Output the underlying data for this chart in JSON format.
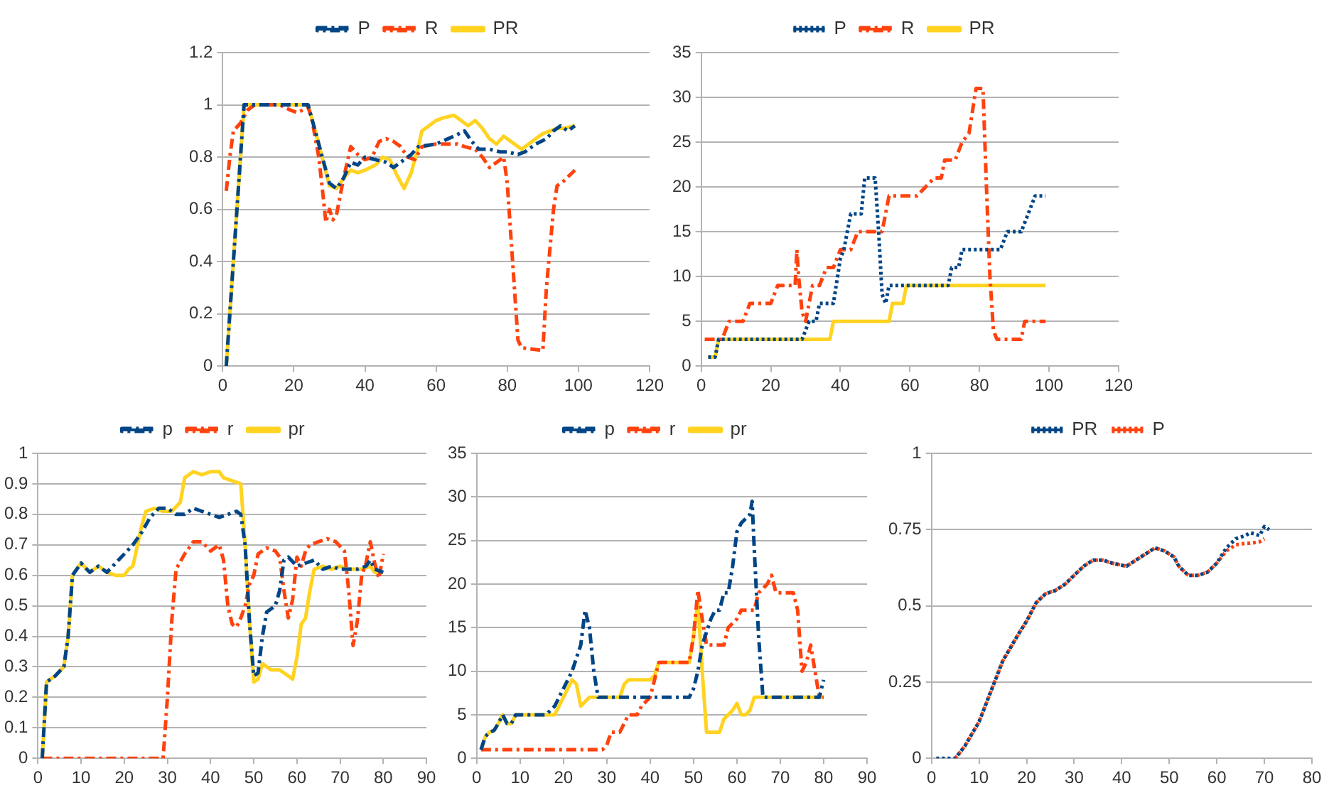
{
  "chart_data": [
    {
      "type": "line",
      "legend": "top",
      "grid": "y",
      "marker": "none",
      "xlim": [
        0,
        120
      ],
      "xticks": [
        0,
        20,
        40,
        60,
        80,
        100,
        120
      ],
      "ylim": [
        0,
        1.2
      ],
      "yticks": [
        0,
        0.2,
        0.4,
        0.6,
        0.8,
        1,
        1.2
      ],
      "series": [
        {
          "name": "P",
          "color": "#004586",
          "line_style": "dashed",
          "x": [
            1,
            6,
            24,
            27,
            30,
            32,
            34,
            36,
            38,
            40,
            43,
            46,
            48,
            51,
            53,
            55,
            60,
            65,
            68,
            70,
            72,
            75,
            78,
            80,
            83,
            85,
            88,
            91,
            93,
            95,
            97,
            99
          ],
          "values": [
            0,
            1,
            1,
            0.85,
            0.7,
            0.68,
            0.72,
            0.78,
            0.77,
            0.8,
            0.79,
            0.78,
            0.76,
            0.79,
            0.81,
            0.84,
            0.85,
            0.88,
            0.9,
            0.86,
            0.83,
            0.83,
            0.82,
            0.82,
            0.81,
            0.82,
            0.85,
            0.87,
            0.9,
            0.92,
            0.9,
            0.92
          ]
        },
        {
          "name": "R",
          "color": "#ff420e",
          "line_style": "dashed",
          "x": [
            1,
            2,
            3,
            5,
            7,
            9,
            16,
            19,
            21,
            24,
            25,
            27,
            28,
            29,
            30,
            31,
            32,
            34,
            36,
            38,
            40,
            42,
            44,
            46,
            48,
            50,
            52,
            54,
            56,
            60,
            63,
            66,
            68,
            71,
            73,
            75,
            77,
            79,
            80,
            81,
            82,
            83,
            84,
            90,
            91,
            93,
            94,
            96,
            99
          ],
          "values": [
            0.67,
            0.8,
            0.9,
            0.93,
            0.98,
            1,
            1,
            0.98,
            0.97,
            0.99,
            0.95,
            0.8,
            0.68,
            0.55,
            0.6,
            0.56,
            0.58,
            0.72,
            0.84,
            0.81,
            0.79,
            0.8,
            0.86,
            0.87,
            0.86,
            0.84,
            0.8,
            0.79,
            0.84,
            0.85,
            0.85,
            0.85,
            0.84,
            0.83,
            0.8,
            0.76,
            0.78,
            0.8,
            0.7,
            0.5,
            0.3,
            0.1,
            0.07,
            0.06,
            0.3,
            0.6,
            0.69,
            0.71,
            0.75
          ]
        },
        {
          "name": "PR",
          "color": "#ffd320",
          "line_style": "solid",
          "x": [
            1,
            6,
            24,
            27,
            30,
            32,
            34,
            36,
            38,
            40,
            43,
            45,
            47,
            49,
            51,
            53,
            55,
            56,
            58,
            60,
            62,
            65,
            67,
            69,
            71,
            73,
            75,
            77,
            79,
            81,
            84,
            86,
            88,
            90,
            92,
            94,
            96,
            99
          ],
          "values": [
            0,
            1,
            1,
            0.85,
            0.69,
            0.68,
            0.72,
            0.75,
            0.74,
            0.75,
            0.77,
            0.8,
            0.79,
            0.73,
            0.68,
            0.74,
            0.84,
            0.9,
            0.92,
            0.94,
            0.95,
            0.96,
            0.94,
            0.92,
            0.94,
            0.91,
            0.87,
            0.85,
            0.88,
            0.86,
            0.83,
            0.85,
            0.87,
            0.89,
            0.9,
            0.91,
            0.91,
            0.92
          ]
        }
      ]
    },
    {
      "type": "line",
      "legend": "top",
      "grid": "y",
      "marker": "none",
      "xlim": [
        0,
        120
      ],
      "xticks": [
        0,
        20,
        40,
        60,
        80,
        100,
        120
      ],
      "ylim": [
        0,
        35
      ],
      "yticks": [
        0,
        5,
        10,
        15,
        20,
        25,
        30,
        35
      ],
      "series": [
        {
          "name": "P",
          "color": "#004586",
          "line_style": "dotted",
          "x": [
            2,
            4,
            5,
            29,
            31,
            33,
            34,
            38,
            40,
            41,
            43,
            46,
            47,
            50,
            51,
            52,
            53,
            54,
            59,
            71,
            72,
            74,
            75,
            86,
            88,
            92,
            95,
            96,
            99
          ],
          "values": [
            1,
            1,
            3,
            3,
            5,
            5,
            7,
            7,
            12,
            13,
            17,
            17,
            21,
            21,
            15,
            8,
            7,
            9,
            9,
            9,
            11,
            11,
            13,
            13,
            15,
            15,
            18,
            19,
            19
          ]
        },
        {
          "name": "R",
          "color": "#ff420e",
          "line_style": "dashed",
          "x": [
            1,
            6,
            7,
            8,
            12,
            13,
            14,
            20,
            22,
            27,
            27.5,
            28,
            29,
            30,
            31,
            32,
            34,
            36,
            38,
            40,
            43,
            45,
            52,
            54,
            62,
            67,
            69,
            70,
            73,
            75,
            77,
            79,
            81,
            82,
            83,
            84,
            85,
            92,
            93,
            99
          ],
          "values": [
            3,
            3,
            4,
            5,
            5,
            6,
            7,
            7,
            9,
            9,
            13,
            10,
            6,
            5,
            7,
            9,
            9,
            11,
            11,
            13,
            13,
            15,
            15,
            19,
            19,
            21,
            21,
            23,
            23,
            25,
            26,
            31,
            31,
            20,
            10,
            4,
            3,
            3,
            5,
            5
          ]
        },
        {
          "name": "PR",
          "color": "#ffd320",
          "line_style": "solid",
          "x": [
            2,
            4,
            5,
            37,
            38,
            54,
            55,
            58,
            59,
            99
          ],
          "values": [
            1,
            1,
            3,
            3,
            5,
            5,
            7,
            7,
            9,
            9
          ]
        }
      ]
    },
    {
      "type": "line",
      "legend": "top",
      "grid": "y",
      "marker": "none",
      "xlim": [
        0,
        90
      ],
      "xticks": [
        0,
        10,
        20,
        30,
        40,
        50,
        60,
        70,
        80,
        90
      ],
      "ylim": [
        0,
        1
      ],
      "yticks": [
        0,
        0.1,
        0.2,
        0.3,
        0.4,
        0.5,
        0.6,
        0.7,
        0.8,
        0.9,
        1
      ],
      "series": [
        {
          "name": "p",
          "color": "#004586",
          "line_style": "dashed",
          "x": [
            1,
            2,
            4,
            6,
            7,
            8,
            10,
            12,
            14,
            16,
            18,
            20,
            22,
            24,
            26,
            28,
            30,
            32,
            34,
            36,
            38,
            40,
            42,
            44,
            46,
            47,
            48,
            49,
            50,
            51,
            52,
            53,
            55,
            56,
            57,
            58,
            60,
            62,
            64,
            66,
            68,
            70,
            72,
            74,
            76,
            77,
            78,
            80
          ],
          "values": [
            0,
            0.25,
            0.27,
            0.3,
            0.4,
            0.6,
            0.64,
            0.61,
            0.63,
            0.61,
            0.64,
            0.67,
            0.7,
            0.74,
            0.79,
            0.82,
            0.82,
            0.8,
            0.8,
            0.82,
            0.81,
            0.8,
            0.79,
            0.8,
            0.81,
            0.8,
            0.7,
            0.45,
            0.27,
            0.28,
            0.4,
            0.48,
            0.5,
            0.55,
            0.65,
            0.66,
            0.63,
            0.64,
            0.65,
            0.62,
            0.63,
            0.62,
            0.62,
            0.62,
            0.63,
            0.65,
            0.62,
            0.61
          ]
        },
        {
          "name": "r",
          "color": "#ff420e",
          "line_style": "dashed",
          "x": [
            1,
            29,
            30,
            31,
            32,
            34,
            36,
            38,
            40,
            42,
            43,
            44,
            45,
            46,
            47,
            48,
            49,
            50,
            51,
            53,
            55,
            56,
            57,
            58,
            59,
            60,
            61,
            62,
            63,
            65,
            67,
            69,
            71,
            72,
            73,
            74,
            75,
            76,
            77,
            78,
            79,
            80
          ],
          "values": [
            0,
            0,
            0.2,
            0.45,
            0.62,
            0.67,
            0.71,
            0.71,
            0.68,
            0.7,
            0.65,
            0.5,
            0.44,
            0.43,
            0.46,
            0.5,
            0.57,
            0.6,
            0.67,
            0.69,
            0.68,
            0.66,
            0.55,
            0.46,
            0.52,
            0.66,
            0.63,
            0.68,
            0.7,
            0.71,
            0.72,
            0.71,
            0.68,
            0.55,
            0.37,
            0.45,
            0.6,
            0.64,
            0.71,
            0.64,
            0.59,
            0.67
          ]
        },
        {
          "name": "pr",
          "color": "#ffd320",
          "line_style": "solid",
          "x": [
            1,
            2,
            4,
            6,
            7,
            8,
            10,
            12,
            14,
            16,
            18,
            20,
            21,
            22,
            24,
            25,
            27,
            29,
            31,
            33,
            34,
            36,
            38,
            40,
            42,
            43,
            45,
            47,
            48,
            49,
            50,
            51,
            52,
            54,
            56,
            58,
            59,
            60,
            61,
            62,
            63,
            64,
            66,
            68,
            70,
            72,
            75,
            77,
            78,
            80
          ],
          "values": [
            0,
            0.25,
            0.27,
            0.3,
            0.4,
            0.6,
            0.64,
            0.61,
            0.63,
            0.61,
            0.6,
            0.6,
            0.62,
            0.63,
            0.76,
            0.81,
            0.82,
            0.81,
            0.81,
            0.84,
            0.92,
            0.94,
            0.93,
            0.94,
            0.94,
            0.92,
            0.91,
            0.9,
            0.7,
            0.45,
            0.25,
            0.26,
            0.31,
            0.29,
            0.29,
            0.27,
            0.26,
            0.33,
            0.44,
            0.46,
            0.55,
            0.62,
            0.63,
            0.62,
            0.63,
            0.62,
            0.62,
            0.63,
            0.61,
            0.61
          ]
        }
      ]
    },
    {
      "type": "line",
      "legend": "top",
      "grid": "y",
      "marker": "none",
      "xlim": [
        0,
        90
      ],
      "xticks": [
        0,
        10,
        20,
        30,
        40,
        50,
        60,
        70,
        80,
        90
      ],
      "ylim": [
        0,
        35
      ],
      "yticks": [
        0,
        5,
        10,
        15,
        20,
        25,
        30,
        35
      ],
      "series": [
        {
          "name": "p",
          "color": "#004586",
          "line_style": "dashed",
          "x": [
            1,
            2,
            3,
            4,
            5,
            6,
            7,
            8,
            9,
            16,
            18,
            20,
            22,
            24,
            25,
            26,
            27,
            28,
            49,
            50,
            51,
            52,
            54,
            55,
            56,
            57,
            58,
            59,
            60,
            61,
            63,
            63.5,
            64,
            65,
            66,
            79,
            80
          ],
          "values": [
            1,
            2.5,
            3,
            3.2,
            4,
            5,
            4,
            4,
            5,
            5,
            6,
            8,
            10,
            13,
            17,
            15,
            10,
            7,
            7,
            8,
            10,
            13,
            16,
            17,
            17,
            19,
            19,
            22,
            26,
            27,
            28,
            29.5,
            24,
            14,
            7,
            7,
            9
          ]
        },
        {
          "name": "r",
          "color": "#ff420e",
          "line_style": "dashed",
          "x": [
            1,
            29,
            30,
            31,
            33,
            34,
            35,
            37,
            38,
            40,
            41,
            42,
            49,
            50,
            51,
            52,
            53,
            57,
            58,
            60,
            61,
            64,
            65,
            67,
            68,
            69,
            71,
            73,
            74,
            75,
            76,
            77,
            78,
            79,
            80
          ],
          "values": [
            1,
            1,
            1.5,
            3,
            3,
            4,
            5,
            5,
            6,
            7,
            9,
            11,
            11,
            14,
            19.3,
            16,
            13,
            13,
            15,
            16,
            17,
            17,
            19,
            20,
            21,
            19,
            19,
            19,
            17,
            10,
            11,
            13,
            10,
            7,
            7
          ]
        },
        {
          "name": "pr",
          "color": "#ffd320",
          "line_style": "solid",
          "x": [
            1,
            2,
            3,
            4,
            5,
            6,
            7,
            8,
            9,
            18,
            19,
            20,
            21,
            22,
            23,
            24,
            25,
            26,
            33,
            34,
            35,
            40,
            41,
            42,
            49,
            50,
            51,
            52,
            53,
            56,
            57,
            58,
            59,
            60,
            61,
            62,
            63,
            64,
            80
          ],
          "values": [
            1,
            2.5,
            3,
            3.2,
            4,
            5,
            4,
            4,
            5,
            5,
            6,
            7,
            8,
            9,
            8.5,
            6,
            6.5,
            7,
            7,
            8.5,
            9,
            9,
            9.5,
            11,
            11,
            14,
            18,
            10,
            3,
            3,
            4.5,
            5,
            5.5,
            6.3,
            5,
            5,
            5.5,
            7,
            7
          ]
        }
      ]
    },
    {
      "type": "line",
      "legend": "top",
      "grid": "y",
      "marker": "none",
      "xlim": [
        0,
        80
      ],
      "xticks": [
        0,
        10,
        20,
        30,
        40,
        50,
        60,
        70,
        80
      ],
      "ylim": [
        0,
        1
      ],
      "yticks": [
        0,
        0.25,
        0.5,
        0.75,
        1
      ],
      "series": [
        {
          "name": "PR",
          "color": "#004586",
          "line_style": "dotted",
          "x": [
            1,
            5,
            7,
            10,
            13,
            15,
            18,
            20,
            22,
            24,
            26,
            28,
            30,
            32,
            34,
            36,
            38,
            41,
            43,
            45,
            47,
            49,
            51,
            52,
            54,
            56,
            58,
            60,
            62,
            64,
            66,
            67,
            69,
            70,
            71
          ],
          "values": [
            0,
            0,
            0.04,
            0.12,
            0.24,
            0.32,
            0.4,
            0.45,
            0.51,
            0.54,
            0.55,
            0.57,
            0.6,
            0.63,
            0.65,
            0.65,
            0.64,
            0.63,
            0.65,
            0.67,
            0.69,
            0.68,
            0.66,
            0.63,
            0.6,
            0.6,
            0.61,
            0.64,
            0.69,
            0.72,
            0.73,
            0.74,
            0.73,
            0.76,
            0.75
          ]
        },
        {
          "name": "P",
          "color": "#ff420e",
          "line_style": "dotted",
          "x": [
            5,
            7,
            10,
            13,
            15,
            18,
            20,
            22,
            24,
            26,
            28,
            30,
            32,
            34,
            36,
            38,
            41,
            43,
            45,
            47,
            49,
            51,
            52,
            54,
            56,
            58,
            60,
            62,
            63,
            64,
            66,
            67,
            69,
            70
          ],
          "values": [
            0,
            0.04,
            0.12,
            0.24,
            0.32,
            0.4,
            0.45,
            0.51,
            0.54,
            0.55,
            0.57,
            0.6,
            0.63,
            0.65,
            0.65,
            0.64,
            0.63,
            0.65,
            0.67,
            0.69,
            0.68,
            0.66,
            0.63,
            0.6,
            0.6,
            0.61,
            0.64,
            0.68,
            0.69,
            0.7,
            0.705,
            0.705,
            0.71,
            0.72
          ]
        }
      ]
    }
  ]
}
